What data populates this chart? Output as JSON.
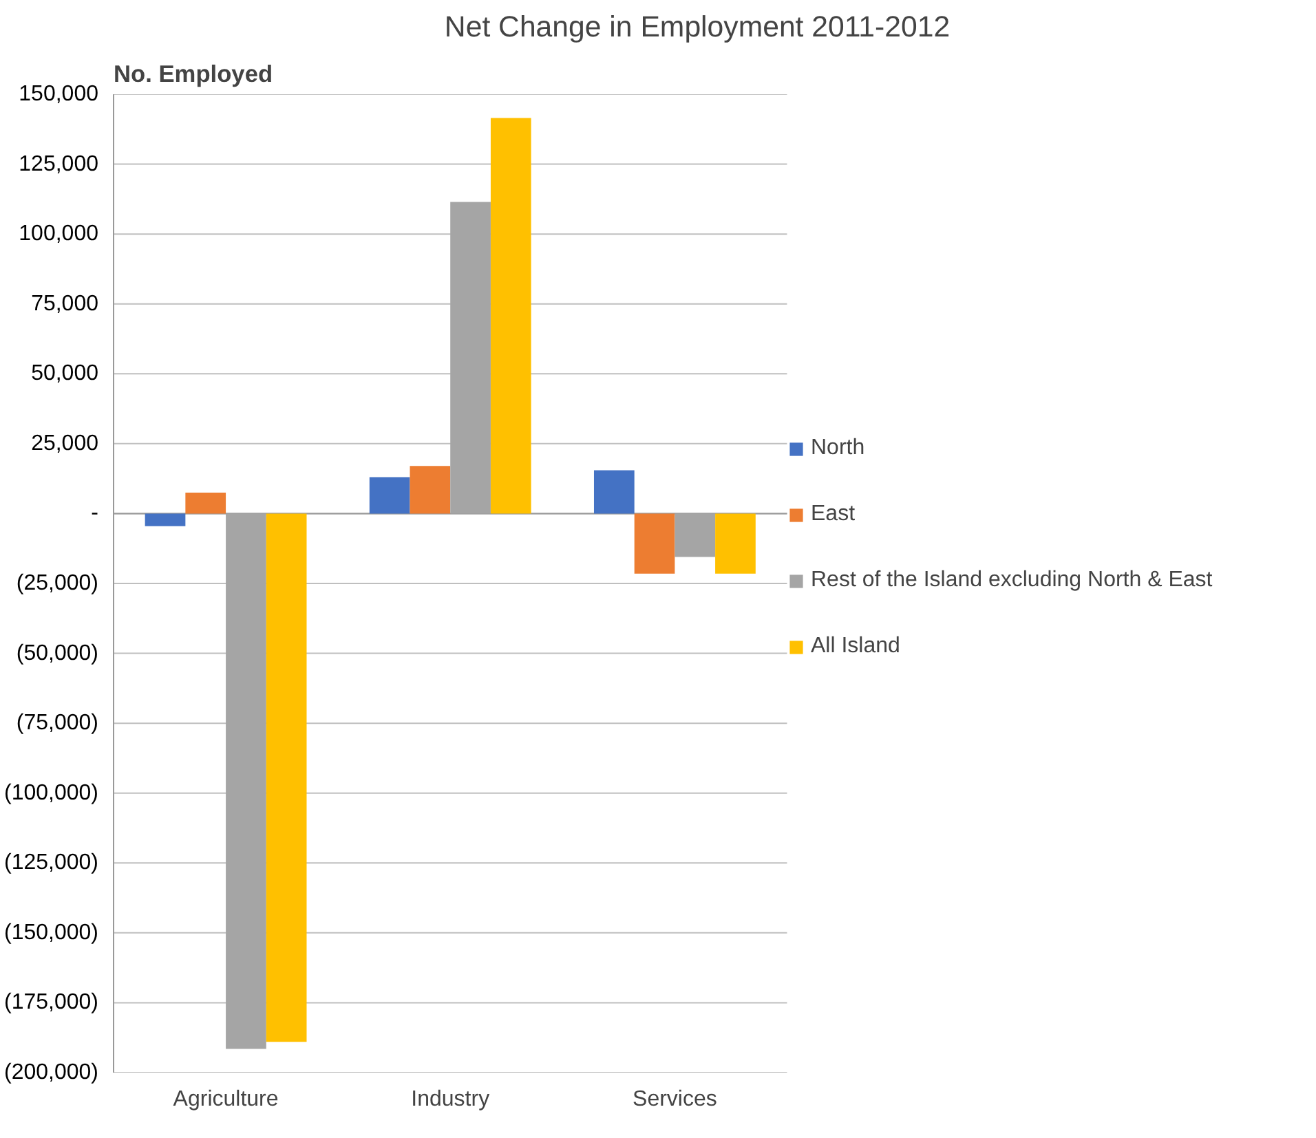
{
  "chart_data": {
    "type": "bar",
    "title": "Net Change in Employment 2011-2012",
    "ylabel": "No. Employed",
    "categories": [
      "Agriculture",
      "Industry",
      "Services"
    ],
    "series": [
      {
        "name": "North",
        "color": "#4472c4",
        "values": [
          -4500,
          13000,
          15500
        ]
      },
      {
        "name": "East",
        "color": "#ed7d31",
        "values": [
          7500,
          17000,
          -21500
        ]
      },
      {
        "name": "Rest of the Island excluding North & East",
        "color": "#a5a5a5",
        "values": [
          -191500,
          111500,
          -15500
        ]
      },
      {
        "name": "All Island",
        "color": "#ffc000",
        "values": [
          -189000,
          141500,
          -21500
        ]
      }
    ],
    "ylim": [
      -200000,
      150000
    ],
    "yticks": [
      {
        "value": 150000,
        "label": "150,000"
      },
      {
        "value": 125000,
        "label": "125,000"
      },
      {
        "value": 100000,
        "label": "100,000"
      },
      {
        "value": 75000,
        "label": "75,000"
      },
      {
        "value": 50000,
        "label": "50,000"
      },
      {
        "value": 25000,
        "label": "25,000"
      },
      {
        "value": 0,
        "label": "-"
      },
      {
        "value": -25000,
        "label": "(25,000)"
      },
      {
        "value": -50000,
        "label": "(50,000)"
      },
      {
        "value": -75000,
        "label": "(75,000)"
      },
      {
        "value": -100000,
        "label": "(100,000)"
      },
      {
        "value": -125000,
        "label": "(125,000)"
      },
      {
        "value": -150000,
        "label": "(150,000)"
      },
      {
        "value": -175000,
        "label": "(175,000)"
      },
      {
        "value": -200000,
        "label": "(200,000)"
      }
    ],
    "grid": "y",
    "legend": "right"
  }
}
